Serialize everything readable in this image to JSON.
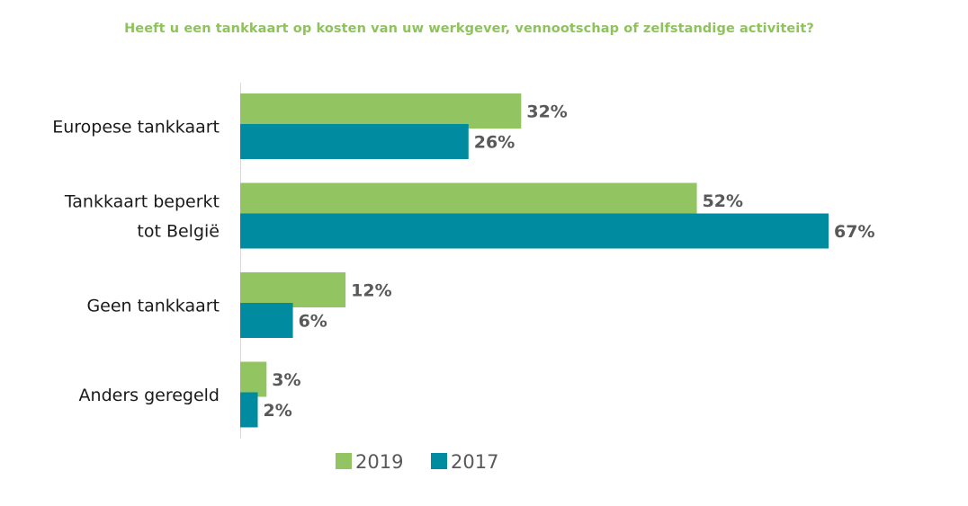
{
  "chart_data": {
    "type": "bar",
    "orientation": "horizontal",
    "title": "Heeft u een tankkaart op kosten van uw werkgever, vennootschap of zelfstandige activiteit?",
    "categories": [
      [
        "Europese tankkaart"
      ],
      [
        "Tankkaart beperkt",
        "tot België"
      ],
      [
        "Geen tankkaart"
      ],
      [
        "Anders geregeld"
      ]
    ],
    "series": [
      {
        "name": "2019",
        "color": "#92c462",
        "values": [
          32,
          52,
          12,
          3
        ],
        "labels": [
          "32%",
          "52%",
          "12%",
          "3%"
        ]
      },
      {
        "name": "2017",
        "color": "#008ba0",
        "values": [
          26,
          67,
          6,
          2
        ],
        "labels": [
          "26%",
          "67%",
          "6%",
          "2%"
        ]
      }
    ],
    "unit": "%",
    "xlim": [
      0,
      67
    ],
    "legend": "bottom",
    "grid": false
  }
}
